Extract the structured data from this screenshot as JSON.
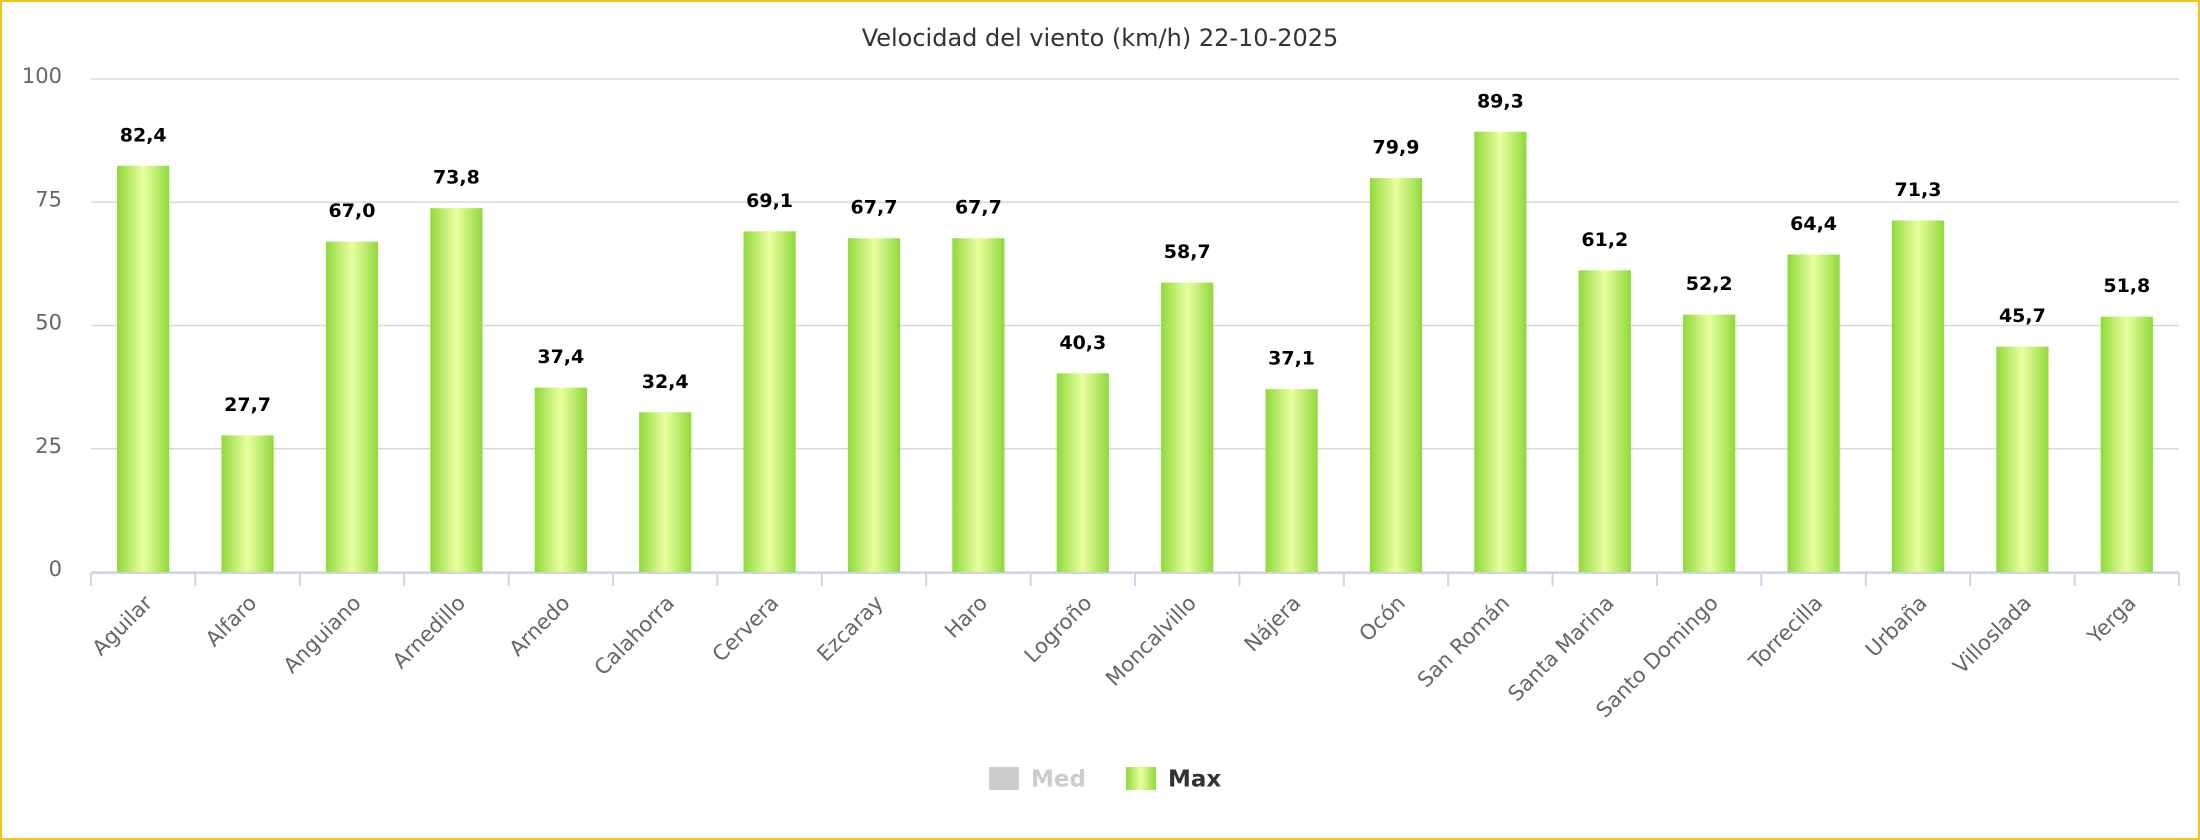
{
  "chart_data": {
    "type": "bar",
    "title": "Velocidad del viento (km/h) 22-10-2025",
    "categories": [
      "Aguilar",
      "Alfaro",
      "Anguiano",
      "Arnedillo",
      "Arnedo",
      "Calahorra",
      "Cervera",
      "Ezcaray",
      "Haro",
      "Logroño",
      "Moncalvillo",
      "Nájera",
      "Ocón",
      "San Román",
      "Santa Marina",
      "Santo Domingo",
      "Torrecilla",
      "Urbaña",
      "Villoslada",
      "Yerga"
    ],
    "series": [
      {
        "name": "Med",
        "color": "#cccccc",
        "visible": false
      },
      {
        "name": "Max",
        "color": "#9be34e",
        "visible": true,
        "values": [
          82.4,
          27.7,
          67.0,
          73.8,
          37.4,
          32.4,
          69.1,
          67.7,
          67.7,
          40.3,
          58.7,
          37.1,
          79.9,
          89.3,
          61.2,
          52.2,
          64.4,
          71.3,
          45.7,
          51.8
        ],
        "value_labels": [
          "82,4",
          "27,7",
          "67,0",
          "73,8",
          "37,4",
          "32,4",
          "69,1",
          "67,7",
          "67,7",
          "40,3",
          "58,7",
          "37,1",
          "79,9",
          "89,3",
          "61,2",
          "52,2",
          "64,4",
          "71,3",
          "45,7",
          "51,8"
        ]
      }
    ],
    "ylim": [
      0,
      100
    ],
    "yticks": [
      0,
      25,
      50,
      75,
      100
    ],
    "grid": true,
    "legend": "bottom"
  }
}
